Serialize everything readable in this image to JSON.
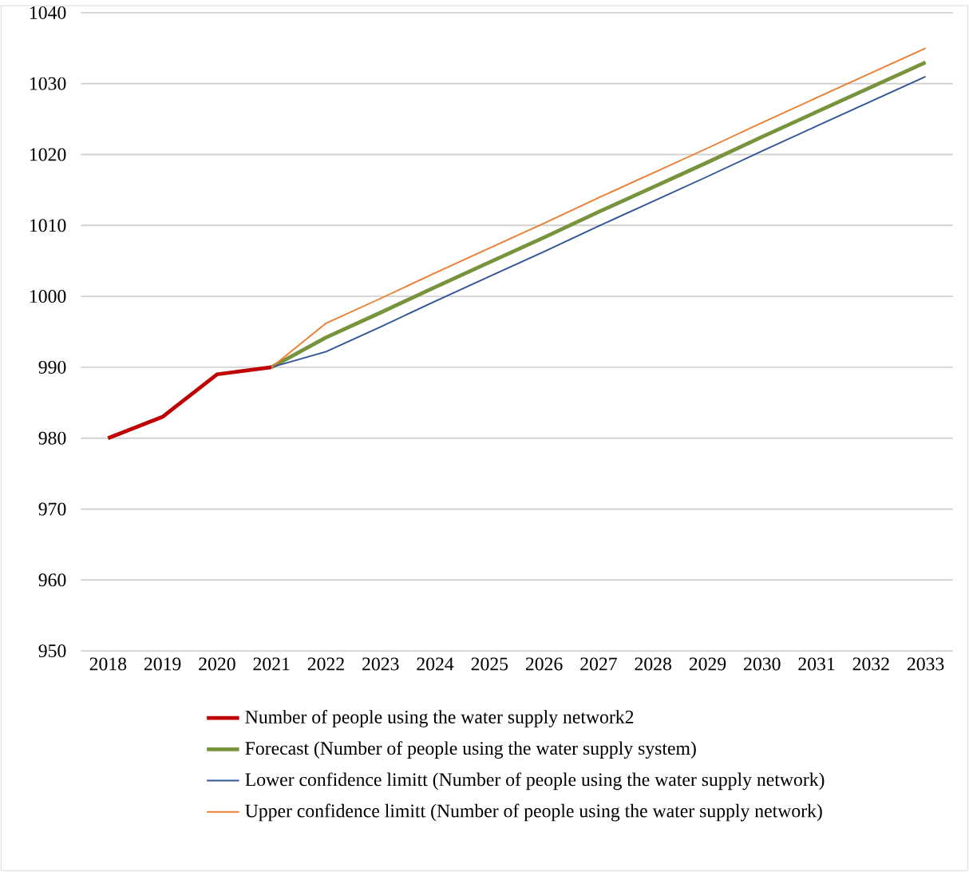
{
  "chart_data": {
    "type": "line",
    "categories": [
      "2018",
      "2019",
      "2020",
      "2021",
      "2022",
      "2023",
      "2024",
      "2025",
      "2026",
      "2027",
      "2028",
      "2029",
      "2030",
      "2031",
      "2032",
      "2033"
    ],
    "series": [
      {
        "name": "Number of people using the water supply network2",
        "color": "#c00000",
        "values": [
          980,
          983,
          989,
          990,
          null,
          null,
          null,
          null,
          null,
          null,
          null,
          null,
          null,
          null,
          null,
          null
        ]
      },
      {
        "name": "Forecast (Number of people using the water supply system)",
        "color": "#77933c",
        "values": [
          null,
          null,
          null,
          990,
          994.2,
          997.7,
          1001.3,
          1004.8,
          1008.3,
          1011.9,
          1015.4,
          1018.9,
          1022.5,
          1026.0,
          1029.5,
          1033.0
        ]
      },
      {
        "name": "Lower confidence limitt (Number of people using the water supply network)",
        "color": "#2f5597",
        "values": [
          null,
          null,
          null,
          990,
          992.2,
          995.7,
          999.3,
          1002.8,
          1006.3,
          1009.9,
          1013.4,
          1016.9,
          1020.5,
          1024.0,
          1027.5,
          1031.0
        ]
      },
      {
        "name": "Upper confidence limitt (Number of people using the water supply network)",
        "color": "#ed7d31",
        "values": [
          null,
          null,
          null,
          990,
          996.2,
          999.7,
          1003.3,
          1006.8,
          1010.3,
          1013.9,
          1017.4,
          1020.9,
          1024.5,
          1028.0,
          1031.5,
          1035.0
        ]
      }
    ],
    "ylim": [
      950,
      1040
    ],
    "yticks": [
      950,
      960,
      970,
      980,
      990,
      1000,
      1010,
      1020,
      1030,
      1040
    ],
    "grid": "y",
    "legend": "bottom"
  }
}
